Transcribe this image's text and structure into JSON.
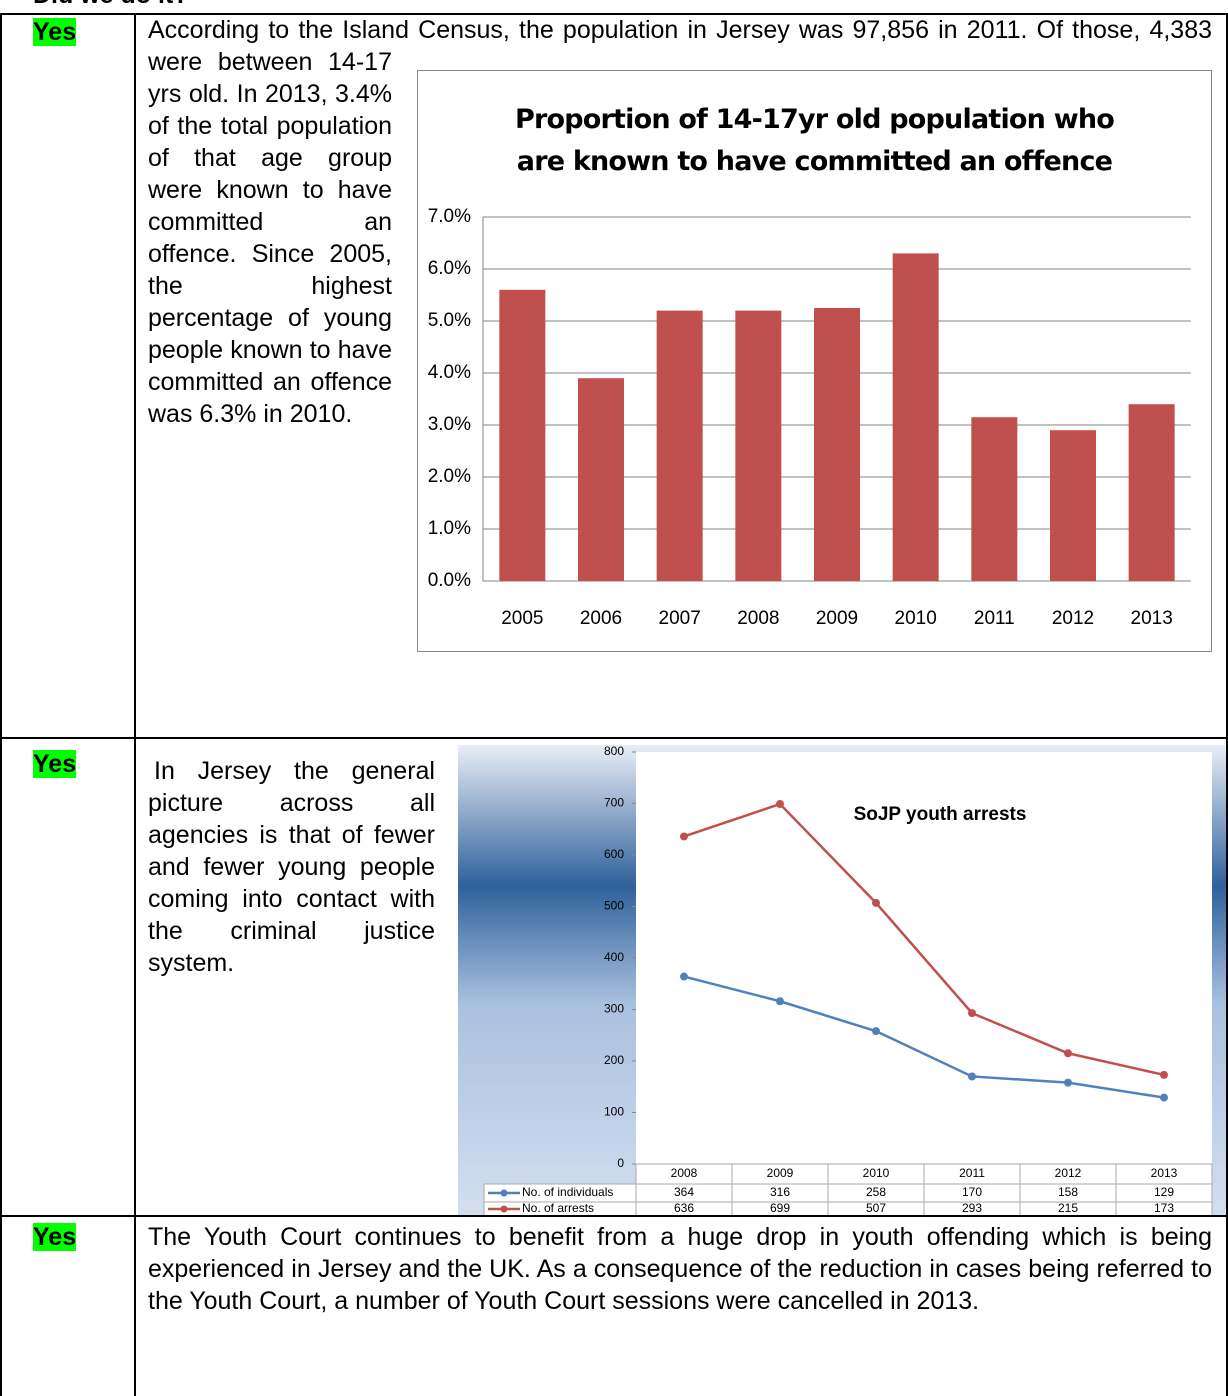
{
  "header": {
    "title": "Did we do it?"
  },
  "rows": [
    {
      "status": "Yes",
      "text": "According to the Island Census, the population in Jersey was 97,856 in 2011. Of those, 4,383 were between 14-17 yrs old. In 2013, 3.4% of the total population of that age group were known to have committed an offence. Since 2005, the highest percentage of young people known to have committed an offence was 6.3% in 2010."
    },
    {
      "status": "Yes",
      "text": "In Jersey the general picture across all agencies is that of fewer and fewer young people coming into contact with the criminal justice system."
    },
    {
      "status": "Yes",
      "text": "The Youth Court continues to benefit from a huge drop in youth offending which is being experienced in Jersey and the UK.  As a consequence of the reduction in cases being referred to the Youth Court, a number of Youth Court sessions were cancelled in 2013."
    }
  ],
  "chart_data": [
    {
      "type": "bar",
      "title": "Proportion of 14-17yr old population who are known to have committed an offence",
      "categories": [
        "2005",
        "2006",
        "2007",
        "2008",
        "2009",
        "2010",
        "2011",
        "2012",
        "2013"
      ],
      "values": [
        5.6,
        3.9,
        5.2,
        5.2,
        5.25,
        6.3,
        3.15,
        2.9,
        3.4
      ],
      "color": "#c0504d",
      "ylim": [
        0,
        7
      ],
      "yticks": [
        {
          "value": 0,
          "label": "0.0%"
        },
        {
          "value": 1,
          "label": "1.0%"
        },
        {
          "value": 2,
          "label": "2.0%"
        },
        {
          "value": 3,
          "label": "3.0%"
        },
        {
          "value": 4,
          "label": "4.0%"
        },
        {
          "value": 5,
          "label": "5.0%"
        },
        {
          "value": 6,
          "label": "6.0%"
        },
        {
          "value": 7,
          "label": "7.0%"
        }
      ],
      "grid": true
    },
    {
      "type": "line",
      "title": "SoJP youth arrests",
      "categories": [
        "2008",
        "2009",
        "2010",
        "2011",
        "2012",
        "2013"
      ],
      "series": [
        {
          "name": "No. of individuals",
          "color": "#4f81bd",
          "values": [
            364,
            316,
            258,
            170,
            158,
            129
          ]
        },
        {
          "name": "No. of arrests",
          "color": "#c0504d",
          "values": [
            636,
            699,
            507,
            293,
            215,
            173
          ]
        }
      ],
      "ylim": [
        0,
        800
      ],
      "yticks": [
        0,
        100,
        200,
        300,
        400,
        500,
        600,
        700,
        800
      ],
      "grid": false
    }
  ]
}
